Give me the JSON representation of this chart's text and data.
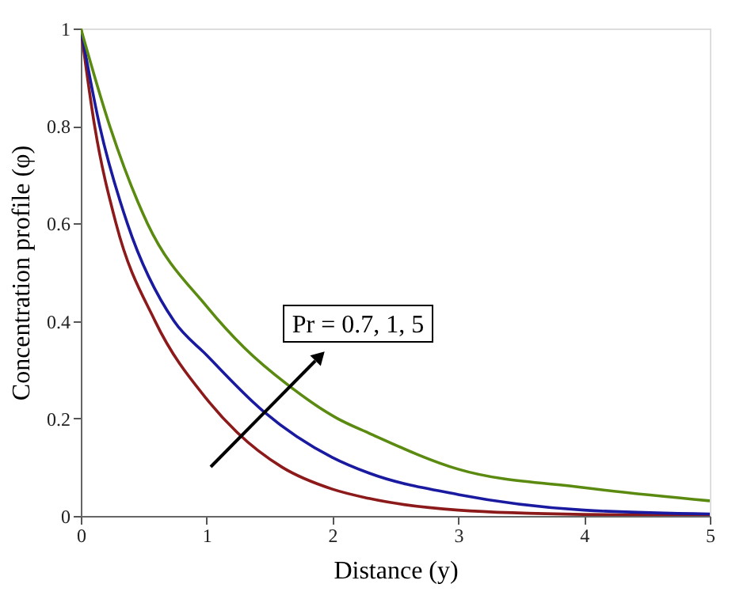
{
  "chart_data": {
    "type": "line",
    "xlabel": "Distance (y)",
    "ylabel": "Concentration profile (φ)",
    "xlim": [
      0,
      5
    ],
    "ylim": [
      0,
      1
    ],
    "xticks": [
      0,
      1,
      2,
      3,
      4,
      5
    ],
    "yticks": [
      0,
      0.2,
      0.4,
      0.6,
      0.8,
      1
    ],
    "grid": false,
    "line_style": "solid",
    "marker": "none",
    "annotations": [
      "Pr = 0.7, 1, 5"
    ],
    "series": [
      {
        "color": "#8c1a1a",
        "x": [
          0,
          0.11,
          0.28,
          0.59,
          1.0,
          1.24,
          1.6,
          2.0,
          2.29,
          3,
          4,
          5
        ],
        "values": [
          1,
          0.8,
          0.6,
          0.4,
          0.24,
          0.172,
          0.1,
          0.055,
          0.036,
          0.012,
          0.003,
          0.001
        ]
      },
      {
        "color": "#1a1aa0",
        "x": [
          0,
          0.15,
          0.37,
          0.74,
          1.0,
          1.45,
          2.0,
          2.29,
          3,
          4,
          5
        ],
        "values": [
          1,
          0.8,
          0.6,
          0.4,
          0.33,
          0.215,
          0.12,
          0.088,
          0.044,
          0.012,
          0.004
        ]
      },
      {
        "color": "#5a8a10",
        "x": [
          0,
          0.23,
          0.53,
          1.0,
          1.3,
          1.64,
          2.04,
          2.29,
          3,
          4,
          5
        ],
        "values": [
          1,
          0.8,
          0.6,
          0.43,
          0.345,
          0.27,
          0.2,
          0.17,
          0.096,
          0.058,
          0.031
        ]
      }
    ]
  }
}
